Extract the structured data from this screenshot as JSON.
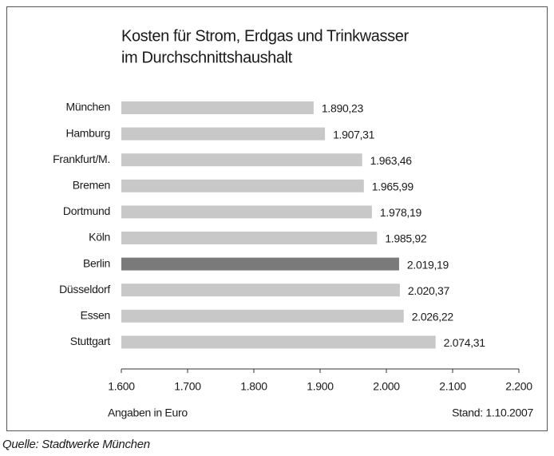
{
  "chart_data": {
    "type": "barh",
    "title": [
      "Kosten für Strom, Erdgas und Trinkwasser",
      "im Durchschnittshaushalt"
    ],
    "categories": [
      "München",
      "Hamburg",
      "Frankfurt/M.",
      "Bremen",
      "Dortmund",
      "Köln",
      "Berlin",
      "Düsseldorf",
      "Essen",
      "Stuttgart"
    ],
    "values": [
      1890.23,
      1907.31,
      1963.46,
      1965.99,
      1978.19,
      1985.92,
      2019.19,
      2020.37,
      2026.22,
      2074.31
    ],
    "value_labels": [
      "1.890,23",
      "1.907,31",
      "1.963,46",
      "1.965,99",
      "1.978,19",
      "1.985,92",
      "2.019,19",
      "2.020,37",
      "2.026,22",
      "2.074,31"
    ],
    "colors": [
      "#c8c8c8",
      "#c8c8c8",
      "#c8c8c8",
      "#c8c8c8",
      "#c8c8c8",
      "#c8c8c8",
      "#7a7a7a",
      "#c8c8c8",
      "#c8c8c8",
      "#c8c8c8"
    ],
    "xlim": [
      1600,
      2200
    ],
    "xticks": [
      {
        "value": 1600,
        "label": "1.600"
      },
      {
        "value": 1700,
        "label": "1.700"
      },
      {
        "value": 1800,
        "label": "1.800"
      },
      {
        "value": 1900,
        "label": "1.900"
      },
      {
        "value": 2000,
        "label": "2.000"
      },
      {
        "value": 2100,
        "label": "2.100"
      },
      {
        "value": 2200,
        "label": "2.200"
      }
    ],
    "xlabel": "Angaben in Euro",
    "note": "Stand: 1.10.2007",
    "source": "Quelle: Stadtwerke München"
  }
}
